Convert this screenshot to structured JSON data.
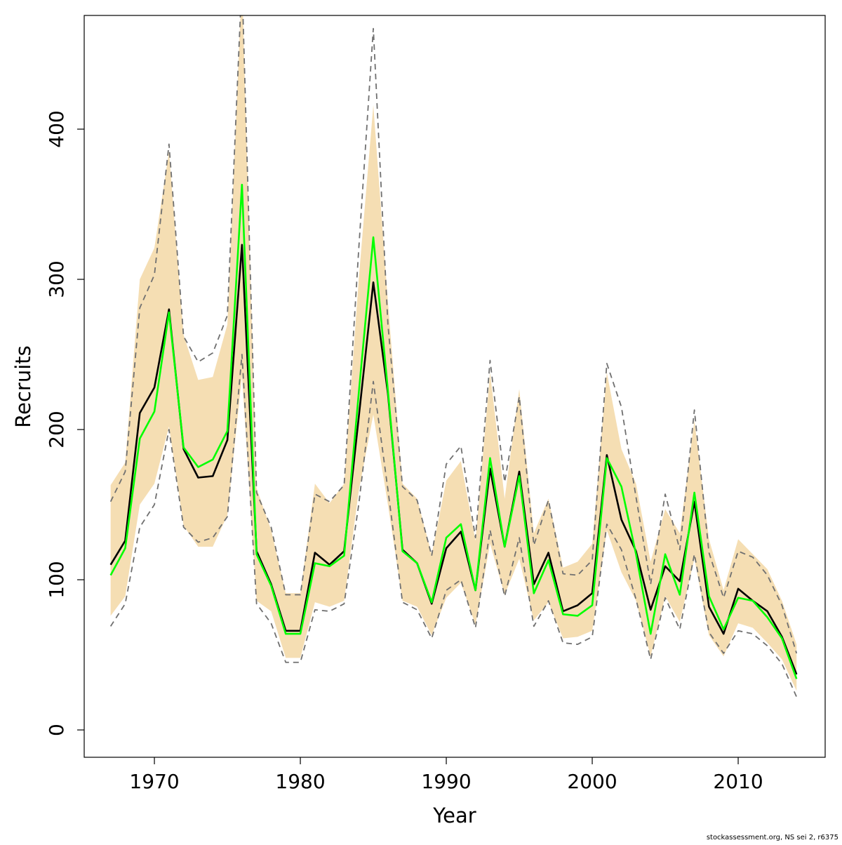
{
  "chart_data": {
    "type": "line",
    "xlabel": "Year",
    "ylabel": "Recruits",
    "footnote": "stockassessment.org, NS sei 2, r6375",
    "x": [
      1967,
      1968,
      1969,
      1970,
      1971,
      1972,
      1973,
      1974,
      1975,
      1976,
      1977,
      1978,
      1979,
      1980,
      1981,
      1982,
      1983,
      1984,
      1985,
      1986,
      1987,
      1988,
      1989,
      1990,
      1991,
      1992,
      1993,
      1994,
      1995,
      1996,
      1997,
      1998,
      1999,
      2000,
      2001,
      2002,
      2003,
      2004,
      2005,
      2006,
      2007,
      2008,
      2009,
      2010,
      2011,
      2012,
      2013,
      2014
    ],
    "xlim": [
      1965.19,
      2015.96
    ],
    "xticks": [
      1970,
      1980,
      1990,
      2000,
      2010
    ],
    "ylim": [
      -18.2,
      475.7
    ],
    "yticks": [
      0,
      100,
      200,
      300,
      400
    ],
    "band": {
      "color": "#f5deb3",
      "upper": [
        163,
        178,
        300,
        321,
        385,
        263,
        233,
        235,
        270,
        500,
        161,
        133,
        91,
        91,
        164,
        151,
        164,
        300,
        416,
        285,
        164,
        154,
        117,
        166,
        179,
        126,
        238,
        154,
        227,
        131,
        154,
        108,
        112,
        124,
        238,
        187,
        164,
        112,
        147,
        131,
        206,
        127,
        93,
        127,
        117,
        107,
        86,
        57
      ],
      "lower": [
        76,
        89,
        150,
        164,
        202,
        136,
        122,
        122,
        143,
        236,
        86,
        79,
        48,
        48,
        85,
        82,
        86,
        159,
        210,
        150,
        86,
        82,
        63,
        88,
        98,
        70,
        124,
        90,
        114,
        73,
        85,
        61,
        62,
        66,
        133,
        105,
        86,
        49,
        89,
        72,
        114,
        63,
        49,
        71,
        68,
        58,
        47,
        26
      ]
    },
    "series": [
      {
        "color": "#707070",
        "dash": true,
        "values": [
          152,
          172,
          281,
          303,
          390,
          262,
          245,
          251,
          276,
          500,
          158,
          135,
          90,
          90,
          157,
          152,
          163,
          320,
          467,
          270,
          162,
          153,
          116,
          177,
          189,
          128,
          246,
          165,
          222,
          123,
          153,
          104,
          103,
          113,
          244,
          215,
          155,
          97,
          157,
          120,
          213,
          118,
          88,
          119,
          115,
          103,
          83,
          51
        ]
      },
      {
        "color": "#707070",
        "dash": true,
        "values": [
          69,
          84,
          135,
          150,
          200,
          135,
          125,
          128,
          142,
          250,
          84,
          71,
          45,
          45,
          80,
          79,
          84,
          150,
          232,
          160,
          85,
          80,
          61,
          93,
          100,
          68,
          133,
          89,
          128,
          69,
          86,
          58,
          57,
          62,
          137,
          120,
          87,
          47,
          88,
          67,
          117,
          65,
          51,
          66,
          64,
          56,
          44,
          22
        ]
      },
      {
        "color": "#000000",
        "dash": false,
        "values": [
          110,
          126,
          211,
          228,
          280,
          187,
          168,
          169,
          193,
          323,
          119,
          97,
          66,
          66,
          118,
          110,
          119,
          208,
          298,
          224,
          120,
          111,
          84,
          121,
          132,
          93,
          174,
          122,
          172,
          97,
          118,
          79,
          83,
          91,
          183,
          140,
          119,
          80,
          109,
          99,
          152,
          82,
          64,
          94,
          86,
          79,
          62,
          37
        ]
      },
      {
        "color": "#00ff00",
        "dash": false,
        "values": [
          103,
          121,
          194,
          212,
          278,
          188,
          175,
          180,
          199,
          363,
          117,
          96,
          64,
          64,
          111,
          109,
          116,
          224,
          328,
          226,
          119,
          111,
          85,
          128,
          137,
          93,
          181,
          122,
          169,
          91,
          113,
          77,
          76,
          83,
          181,
          162,
          117,
          64,
          117,
          90,
          158,
          89,
          67,
          88,
          86,
          75,
          61,
          34
        ]
      }
    ]
  }
}
